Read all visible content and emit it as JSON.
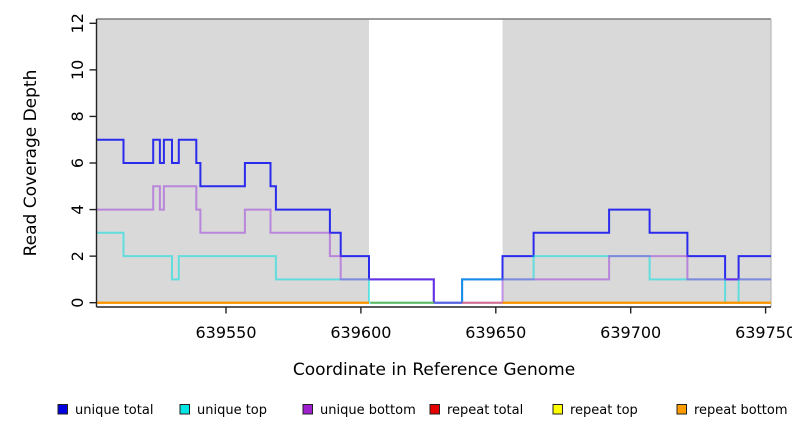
{
  "chart_data": {
    "type": "line",
    "subtype": "step-coverage",
    "title": "",
    "xlabel": "Coordinate in Reference Genome",
    "ylabel": "Read Coverage Depth",
    "xlim": [
      639502,
      639752
    ],
    "ylim": [
      0,
      12
    ],
    "x_ticks": [
      {
        "value": 639550,
        "label": "639550"
      },
      {
        "value": 639600,
        "label": "639600"
      },
      {
        "value": 639650,
        "label": "639650"
      },
      {
        "value": 639700,
        "label": "639700"
      },
      {
        "value": 639750,
        "label": "639750"
      }
    ],
    "y_ticks": [
      {
        "value": 0,
        "label": "0"
      },
      {
        "value": 2,
        "label": "2"
      },
      {
        "value": 4,
        "label": "4"
      },
      {
        "value": 6,
        "label": "6"
      },
      {
        "value": 8,
        "label": "8"
      },
      {
        "value": 10,
        "label": "10"
      },
      {
        "value": 12,
        "label": "12"
      }
    ],
    "shaded_regions": [
      {
        "from": 639502,
        "to": 639603,
        "color": "#d9d9d9"
      },
      {
        "from": 639652.5,
        "to": 639752,
        "color": "#d9d9d9"
      }
    ],
    "series": [
      {
        "name": "unique total",
        "color": "#2222ee",
        "opacity": 0.95,
        "steps": [
          [
            639502,
            7
          ],
          [
            639512,
            6
          ],
          [
            639523,
            7
          ],
          [
            639525.5,
            6
          ],
          [
            639527,
            7
          ],
          [
            639530,
            6
          ],
          [
            639532.5,
            7
          ],
          [
            639539,
            6
          ],
          [
            639540.5,
            5
          ],
          [
            639557,
            6
          ],
          [
            639566.5,
            5
          ],
          [
            639568.5,
            4
          ],
          [
            639588.5,
            3
          ],
          [
            639592.5,
            2
          ],
          [
            639603,
            1
          ],
          [
            639627,
            0
          ],
          [
            639637.5,
            1
          ],
          [
            639652.5,
            2
          ],
          [
            639664,
            3
          ],
          [
            639692,
            4
          ],
          [
            639707,
            3
          ],
          [
            639721,
            2
          ],
          [
            639735,
            1
          ],
          [
            639740,
            2
          ]
        ],
        "end": 639752
      },
      {
        "name": "unique top",
        "color": "#00e0e0",
        "opacity": 0.55,
        "steps": [
          [
            639502,
            3
          ],
          [
            639512,
            2
          ],
          [
            639530,
            1
          ],
          [
            639532.5,
            2
          ],
          [
            639568.5,
            1
          ],
          [
            639603,
            0
          ],
          [
            639637.5,
            1
          ],
          [
            639664,
            2
          ],
          [
            639707,
            1
          ],
          [
            639735,
            0
          ],
          [
            639740,
            1
          ]
        ],
        "end": 639752
      },
      {
        "name": "unique bottom",
        "color": "#9933dd",
        "opacity": 0.5,
        "steps": [
          [
            639502,
            4
          ],
          [
            639523,
            5
          ],
          [
            639525.5,
            4
          ],
          [
            639527,
            5
          ],
          [
            639539,
            4
          ],
          [
            639540.5,
            3
          ],
          [
            639557,
            4
          ],
          [
            639566.5,
            3
          ],
          [
            639588.5,
            2
          ],
          [
            639592.5,
            1
          ],
          [
            639627,
            0
          ],
          [
            639652.5,
            1
          ],
          [
            639692,
            2
          ],
          [
            639721,
            1
          ]
        ],
        "end": 639752
      },
      {
        "name": "repeat total",
        "color": "#dd0000",
        "opacity": 0.85,
        "value": 0,
        "spans": [
          [
            639502,
            639603
          ],
          [
            639652.5,
            639752
          ]
        ]
      },
      {
        "name": "repeat top",
        "color": "#f5f500",
        "opacity": 0.9,
        "value": 0,
        "spans": [
          [
            639502,
            639603
          ],
          [
            639652.5,
            639752
          ]
        ]
      },
      {
        "name": "repeat bottom",
        "color": "#ff9400",
        "opacity": 1,
        "value": 0,
        "spans": [
          [
            639502,
            639603
          ],
          [
            639652.5,
            639752
          ]
        ]
      }
    ],
    "zero_overlap_segments": [
      {
        "from": 639603.5,
        "to": 639627,
        "color": "#5eb85e"
      },
      {
        "from": 639637.5,
        "to": 639652.5,
        "color": "#d06e8c"
      }
    ],
    "legend": [
      {
        "label": "unique total",
        "fill": "#0000e0"
      },
      {
        "label": "unique top",
        "fill": "#00e5e5"
      },
      {
        "label": "unique bottom",
        "fill": "#a020d0"
      },
      {
        "label": "repeat total",
        "fill": "#e60000"
      },
      {
        "label": "repeat top",
        "fill": "#ffff00"
      },
      {
        "label": "repeat bottom",
        "fill": "#ff9d00"
      }
    ],
    "legend_position": "bottom",
    "grid": false
  }
}
